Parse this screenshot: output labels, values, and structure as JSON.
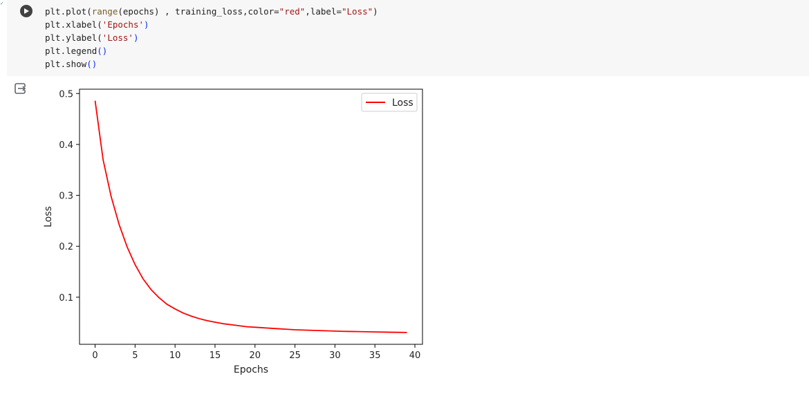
{
  "cell": {
    "status_glyph": "✓",
    "exec_time": "",
    "code_lines": [
      [
        [
          "plt.plot(",
          "plain"
        ],
        [
          "range",
          "fn"
        ],
        [
          "(epochs) , training_loss,color=",
          "plain"
        ],
        [
          "\"red\"",
          "s"
        ],
        [
          ",label=",
          "plain"
        ],
        [
          "\"Loss\"",
          "s"
        ],
        [
          ")",
          "plain"
        ]
      ],
      [
        [
          "plt.xlabel(",
          "plain"
        ],
        [
          "'Epochs'",
          "s"
        ],
        [
          ")",
          "p"
        ]
      ],
      [
        [
          "plt.ylabel(",
          "plain"
        ],
        [
          "'Loss'",
          "s"
        ],
        [
          ")",
          "p"
        ]
      ],
      [
        [
          "plt.legend",
          "plain"
        ],
        [
          "()",
          "p"
        ]
      ],
      [
        [
          "plt.show",
          "plain"
        ],
        [
          "()",
          "p"
        ]
      ]
    ]
  },
  "icons": {
    "run": "play-icon",
    "output": "output-toggle-icon"
  },
  "colors": {
    "line": "#ff0000",
    "cell_bg": "#f7f7f7"
  },
  "chart_data": {
    "type": "line",
    "title": "",
    "xlabel": "Epochs",
    "ylabel": "Loss",
    "xlim": [
      -1.95,
      40.95
    ],
    "ylim": [
      0.0075,
      0.5085
    ],
    "xticks": [
      0,
      5,
      10,
      15,
      20,
      25,
      30,
      35,
      40
    ],
    "yticks": [
      0.1,
      0.2,
      0.3,
      0.4,
      0.5
    ],
    "xtick_labels": [
      "0",
      "5",
      "10",
      "15",
      "20",
      "25",
      "30",
      "35",
      "40"
    ],
    "ytick_labels": [
      "0.1",
      "0.2",
      "0.3",
      "0.4",
      "0.5"
    ],
    "legend_position": "top-right",
    "grid": false,
    "series": [
      {
        "name": "Loss",
        "color": "#ff0000",
        "x": [
          0,
          1,
          2,
          3,
          4,
          5,
          6,
          7,
          8,
          9,
          10,
          11,
          12,
          13,
          14,
          15,
          16,
          17,
          18,
          19,
          20,
          21,
          22,
          23,
          24,
          25,
          26,
          27,
          28,
          29,
          30,
          31,
          32,
          33,
          34,
          35,
          36,
          37,
          38,
          39
        ],
        "values": [
          0.486,
          0.37,
          0.298,
          0.243,
          0.199,
          0.164,
          0.136,
          0.115,
          0.099,
          0.086,
          0.077,
          0.069,
          0.063,
          0.058,
          0.054,
          0.051,
          0.048,
          0.046,
          0.044,
          0.042,
          0.041,
          0.04,
          0.039,
          0.038,
          0.037,
          0.036,
          0.0355,
          0.035,
          0.0345,
          0.034,
          0.0335,
          0.033,
          0.0327,
          0.0324,
          0.0321,
          0.0318,
          0.0315,
          0.0312,
          0.031,
          0.0308
        ]
      }
    ]
  }
}
